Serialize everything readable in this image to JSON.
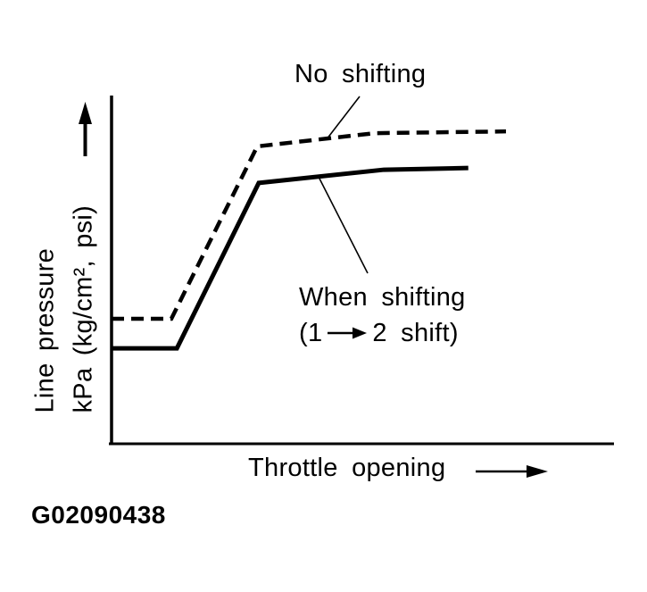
{
  "figure_id": "G02090438",
  "colors": {
    "ink": "#000000",
    "paper": "#ffffff"
  },
  "labels": {
    "no_shifting": "No shifting",
    "when_shifting_line1": "When shifting",
    "when_shifting_line2_pre": "(1",
    "when_shifting_line2_post": "2 shift)",
    "x_axis": "Throttle opening",
    "y_axis_line1": "Line pressure",
    "y_axis_line2": "kPa (kg/cm², psi)"
  },
  "chart_data": {
    "type": "line",
    "title": "",
    "xlabel": "Throttle opening",
    "ylabel": "Line pressure kPa (kg/cm², psi)",
    "x_axis": {
      "unit": "normalized",
      "range": [
        0,
        1
      ],
      "ticks": [],
      "arrow": true
    },
    "y_axis": {
      "unit": "normalized",
      "range": [
        0,
        1
      ],
      "ticks": [],
      "arrow": true
    },
    "grid": false,
    "legend": "inline annotations with leader lines",
    "series": [
      {
        "name": "No shifting",
        "line_style": "dashed",
        "points": [
          [
            0.0,
            0.359
          ],
          [
            0.119,
            0.359
          ],
          [
            0.29,
            0.854
          ],
          [
            0.524,
            0.892
          ],
          [
            0.785,
            0.897
          ]
        ]
      },
      {
        "name": "When shifting (1 → 2 shift)",
        "line_style": "solid",
        "points": [
          [
            0.0,
            0.274
          ],
          [
            0.13,
            0.274
          ],
          [
            0.293,
            0.749
          ],
          [
            0.542,
            0.787
          ],
          [
            0.71,
            0.792
          ]
        ]
      }
    ],
    "annotations": [
      {
        "text": "No shifting",
        "targets": "dashed series"
      },
      {
        "text": "When shifting (1 → 2 shift)",
        "targets": "solid series"
      }
    ]
  }
}
